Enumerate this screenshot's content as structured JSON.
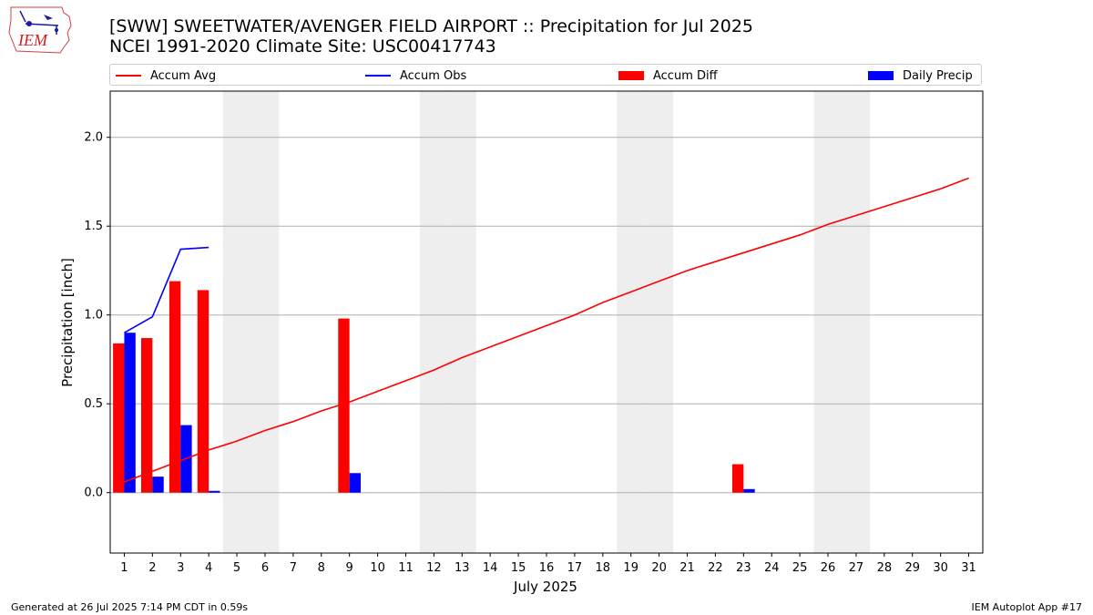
{
  "header": {
    "title_line1": "[SWW] SWEETWATER/AVENGER FIELD AIRPORT :: Precipitation for Jul 2025",
    "title_line2": "NCEI 1991-2020 Climate Site: USC00417743",
    "logo_text": "IEM"
  },
  "footer": {
    "left": "Generated at 26 Jul 2025 7:14 PM CDT in 0.59s",
    "right": "IEM Autoplot App #17"
  },
  "colors": {
    "avg": "#ff0000",
    "obs": "#0000ff",
    "diff": "#ff0000",
    "daily": "#0000ff",
    "weekend": "#eeeeee",
    "grid": "#b0b0b0"
  },
  "chart_data": {
    "type": "bar",
    "title": "[SWW] SWEETWATER/AVENGER FIELD AIRPORT :: Precipitation for Jul 2025",
    "xlabel": "July 2025",
    "ylabel": "Precipitation [inch]",
    "ylim": [
      -0.34,
      2.26
    ],
    "yticks": [
      0.0,
      0.5,
      1.0,
      1.5,
      2.0
    ],
    "ytick_labels": [
      "0.0",
      "0.5",
      "1.0",
      "1.5",
      "2.0"
    ],
    "categories": [
      "1",
      "2",
      "3",
      "4",
      "5",
      "6",
      "7",
      "8",
      "9",
      "10",
      "11",
      "12",
      "13",
      "14",
      "15",
      "16",
      "17",
      "18",
      "19",
      "20",
      "21",
      "22",
      "23",
      "24",
      "25",
      "26",
      "27",
      "28",
      "29",
      "30",
      "31"
    ],
    "weekend_days": [
      5,
      6,
      12,
      13,
      19,
      20,
      26,
      27
    ],
    "grid": "horizontal",
    "legend_position": "top",
    "series": [
      {
        "name": "Accum Avg",
        "type": "line",
        "x": [
          1,
          2,
          3,
          4,
          5,
          6,
          7,
          8,
          9,
          10,
          11,
          12,
          13,
          14,
          15,
          16,
          17,
          18,
          19,
          20,
          21,
          22,
          23,
          24,
          25,
          26,
          27,
          28,
          29,
          30,
          31
        ],
        "values": [
          0.06,
          0.12,
          0.18,
          0.24,
          0.29,
          0.35,
          0.4,
          0.46,
          0.51,
          0.57,
          0.63,
          0.69,
          0.76,
          0.82,
          0.88,
          0.94,
          1.0,
          1.07,
          1.13,
          1.19,
          1.25,
          1.3,
          1.35,
          1.4,
          1.45,
          1.51,
          1.56,
          1.61,
          1.66,
          1.71,
          1.77
        ]
      },
      {
        "name": "Accum Obs",
        "type": "line",
        "x": [
          1,
          2,
          3,
          4
        ],
        "values": [
          0.9,
          0.99,
          1.37,
          1.38
        ]
      },
      {
        "name": "Accum Diff",
        "type": "bar",
        "x": [
          1,
          2,
          3,
          4,
          9,
          23
        ],
        "values": [
          0.84,
          0.87,
          1.19,
          1.14,
          0.98,
          0.16
        ]
      },
      {
        "name": "Daily Precip",
        "type": "bar",
        "x": [
          1,
          2,
          3,
          4,
          9,
          23
        ],
        "values": [
          0.9,
          0.09,
          0.38,
          0.01,
          0.11,
          0.02
        ]
      }
    ]
  }
}
